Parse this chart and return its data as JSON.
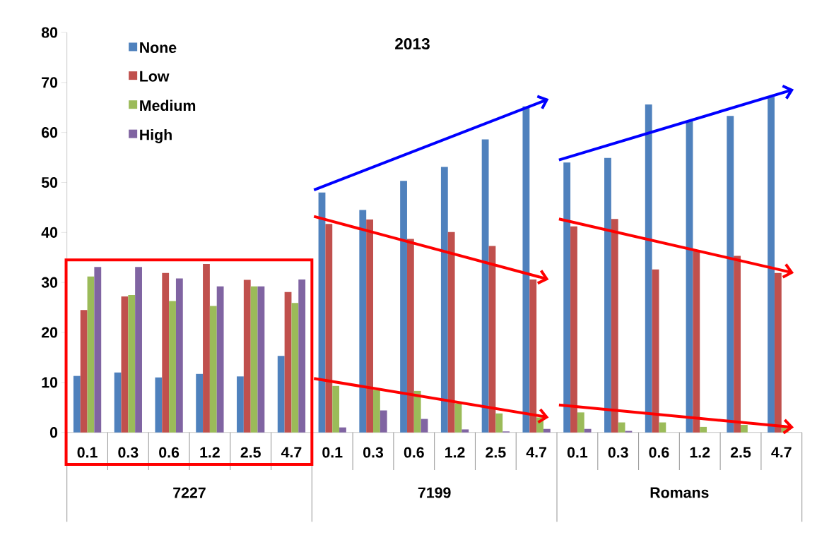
{
  "chart_data": {
    "type": "bar",
    "title": "2013",
    "categories": [
      "0.1",
      "0.3",
      "0.6",
      "1.2",
      "2.5",
      "4.7",
      "0.1",
      "0.3",
      "0.6",
      "1.2",
      "2.5",
      "4.7",
      "0.1",
      "0.3",
      "0.6",
      "1.2",
      "2.5",
      "4.7"
    ],
    "annotations": [
      "7227",
      "7199",
      "Romans"
    ],
    "series": [
      {
        "name": "None",
        "color": "#4f81bd",
        "values": [
          11.3,
          12.0,
          11.0,
          11.7,
          11.2,
          15.3,
          48.0,
          44.5,
          50.3,
          53.1,
          58.6,
          65.2,
          54.0,
          54.9,
          65.6,
          62.3,
          63.3,
          67.1
        ]
      },
      {
        "name": "Low",
        "color": "#c0504d",
        "values": [
          24.5,
          27.2,
          31.9,
          33.7,
          30.5,
          28.1,
          41.7,
          42.6,
          38.7,
          40.1,
          37.3,
          30.6,
          41.2,
          42.7,
          32.6,
          36.5,
          35.3,
          31.9
        ]
      },
      {
        "name": "Medium",
        "color": "#9bbb59",
        "values": [
          31.2,
          27.5,
          26.3,
          25.3,
          29.2,
          25.9,
          9.3,
          8.5,
          8.3,
          5.8,
          3.8,
          3.0,
          4.0,
          2.0,
          2.0,
          1.1,
          1.5,
          1.0
        ]
      },
      {
        "name": "High",
        "color": "#8064a2",
        "values": [
          33.1,
          33.1,
          30.8,
          29.2,
          29.2,
          30.6,
          1.0,
          4.4,
          2.7,
          0.6,
          0.2,
          0.7,
          0.7,
          0.3,
          0,
          0,
          0,
          0
        ]
      }
    ],
    "ylim": [
      0,
      80
    ],
    "yticks": [
      0,
      10,
      20,
      30,
      40,
      50,
      60,
      70,
      80
    ],
    "grid": false,
    "legend": "top left"
  }
}
